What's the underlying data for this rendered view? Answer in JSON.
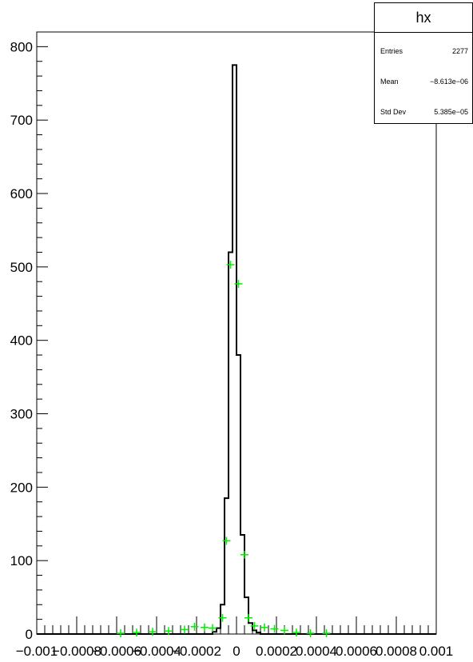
{
  "chart_data": {
    "type": "histogram",
    "title": "",
    "xlabel": "",
    "ylabel": "",
    "xlim": [
      -0.001,
      0.001
    ],
    "ylim": [
      0,
      820
    ],
    "yticks": [
      0,
      100,
      200,
      300,
      400,
      500,
      600,
      700,
      800
    ],
    "xtick_labels": [
      {
        "value": -0.001,
        "label": "−0.001"
      },
      {
        "value": -0.0008,
        "label": "−0.0008"
      },
      {
        "value": -0.0006,
        "label": "−0.0006"
      },
      {
        "value": -0.0004,
        "label": "−0.0004"
      },
      {
        "value": -0.0002,
        "label": "−0.0002"
      },
      {
        "value": 0,
        "label": "0"
      },
      {
        "value": 0.0002,
        "label": "0.0002"
      },
      {
        "value": 0.0004,
        "label": "0.0004"
      },
      {
        "value": 0.0006,
        "label": "0.0006"
      },
      {
        "value": 0.0008,
        "label": "0.0008"
      },
      {
        "value": 0.001,
        "label": "0.001"
      }
    ],
    "histogram": {
      "name": "hx",
      "bin_width": 2e-05,
      "bins": [
        {
          "x0": -0.00012,
          "x1": -0.0001,
          "count": 3
        },
        {
          "x0": -0.0001,
          "x1": -8e-05,
          "count": 8
        },
        {
          "x0": -8e-05,
          "x1": -6e-05,
          "count": 40
        },
        {
          "x0": -6e-05,
          "x1": -4e-05,
          "count": 185
        },
        {
          "x0": -4e-05,
          "x1": -2e-05,
          "count": 520
        },
        {
          "x0": -2e-05,
          "x1": 0.0,
          "count": 775
        },
        {
          "x0": 0.0,
          "x1": 2e-05,
          "count": 380
        },
        {
          "x0": 2e-05,
          "x1": 4e-05,
          "count": 135
        },
        {
          "x0": 4e-05,
          "x1": 6e-05,
          "count": 50
        },
        {
          "x0": 6e-05,
          "x1": 8e-05,
          "count": 15
        },
        {
          "x0": 8e-05,
          "x1": 0.0001,
          "count": 5
        },
        {
          "x0": 0.0001,
          "x1": 0.00012,
          "count": 2
        }
      ]
    },
    "overlay_points": {
      "color": "#00ee00",
      "points": [
        {
          "x": -0.00058,
          "y": 1
        },
        {
          "x": -0.0005,
          "y": 2
        },
        {
          "x": -0.00042,
          "y": 3
        },
        {
          "x": -0.00034,
          "y": 4
        },
        {
          "x": -0.00026,
          "y": 6
        },
        {
          "x": -0.00021,
          "y": 10
        },
        {
          "x": -0.00016,
          "y": 9
        },
        {
          "x": -0.00012,
          "y": 8
        },
        {
          "x": -7e-05,
          "y": 22
        },
        {
          "x": -5e-05,
          "y": 127
        },
        {
          "x": -3e-05,
          "y": 503
        },
        {
          "x": 1e-05,
          "y": 477
        },
        {
          "x": 4e-05,
          "y": 108
        },
        {
          "x": 6e-05,
          "y": 22
        },
        {
          "x": 9e-05,
          "y": 11
        },
        {
          "x": 0.00014,
          "y": 9
        },
        {
          "x": 0.00019,
          "y": 7
        },
        {
          "x": 0.00024,
          "y": 5
        },
        {
          "x": 0.0003,
          "y": 2
        },
        {
          "x": 0.00037,
          "y": 1
        },
        {
          "x": 0.00045,
          "y": 1
        }
      ]
    }
  },
  "stats": {
    "title": "hx",
    "rows": [
      {
        "key": "Entries",
        "value": "2277"
      },
      {
        "key": "Mean",
        "value": "−8.613e−06"
      },
      {
        "key": "Std Dev",
        "value": "5.385e−05"
      }
    ]
  }
}
